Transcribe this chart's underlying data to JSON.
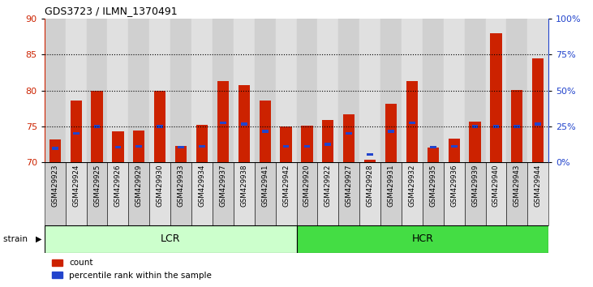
{
  "title": "GDS3723 / ILMN_1370491",
  "samples": [
    "GSM429923",
    "GSM429924",
    "GSM429925",
    "GSM429926",
    "GSM429929",
    "GSM429930",
    "GSM429933",
    "GSM429934",
    "GSM429937",
    "GSM429938",
    "GSM429941",
    "GSM429942",
    "GSM429920",
    "GSM429922",
    "GSM429927",
    "GSM429928",
    "GSM429931",
    "GSM429932",
    "GSM429935",
    "GSM429936",
    "GSM429939",
    "GSM429940",
    "GSM429943",
    "GSM429944"
  ],
  "red_values": [
    73.2,
    78.6,
    80.0,
    74.3,
    74.4,
    80.0,
    72.3,
    75.2,
    81.3,
    80.7,
    78.6,
    75.0,
    75.1,
    75.9,
    76.7,
    70.3,
    78.1,
    81.3,
    72.0,
    73.3,
    75.6,
    88.0,
    80.1,
    84.5
  ],
  "blue_values": [
    71.9,
    74.0,
    75.0,
    72.1,
    72.2,
    75.0,
    72.1,
    72.2,
    75.5,
    75.3,
    74.3,
    72.2,
    72.2,
    72.5,
    74.0,
    71.1,
    74.3,
    75.5,
    72.1,
    72.2,
    75.0,
    75.0,
    75.0,
    75.3
  ],
  "lcr_count": 12,
  "hcr_count": 12,
  "ylim_left": [
    70,
    90
  ],
  "ylim_right": [
    0,
    100
  ],
  "yticks_left": [
    70,
    75,
    80,
    85,
    90
  ],
  "yticks_right": [
    0,
    25,
    50,
    75,
    100
  ],
  "ytick_labels_right": [
    "0%",
    "25%",
    "50%",
    "75%",
    "100%"
  ],
  "red_color": "#cc2200",
  "blue_color": "#2244cc",
  "lcr_color": "#ccffcc",
  "hcr_color": "#44dd44",
  "bar_width": 0.55,
  "background_color": "#ffffff",
  "grid_yticks": [
    75,
    80,
    85
  ],
  "col_even": "#d0d0d0",
  "col_odd": "#e0e0e0"
}
